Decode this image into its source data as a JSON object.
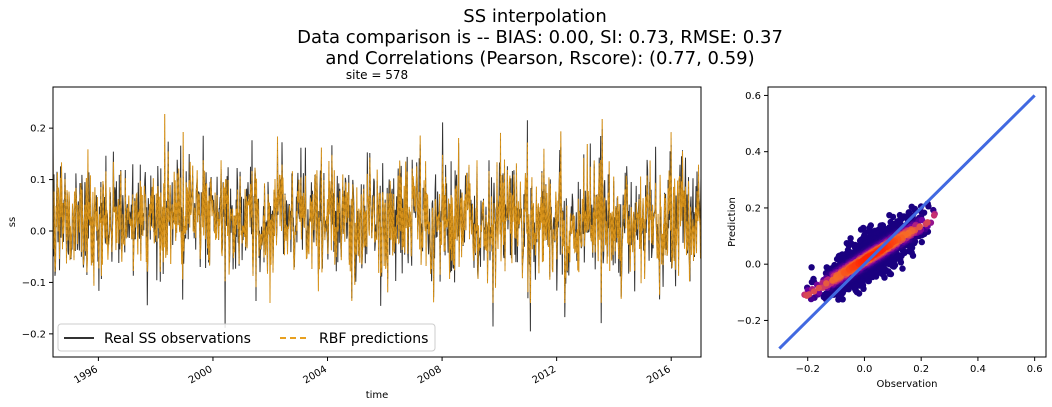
{
  "figure": {
    "title_lines": [
      "SS interpolation",
      "Data comparison is   --   BIAS: 0.00, SI: 0.73, RMSE: 0.37",
      "and Correlations (Pearson, Rscore): (0.77, 0.59)"
    ],
    "colors": {
      "observation_series": "#333333",
      "prediction_series": "#e8a020",
      "prediction_overlap": "#c08010",
      "fit_line": "#4169e1",
      "density_low": "#1a0080",
      "density_mid": "#c0287a",
      "density_high": "#ff2000"
    }
  },
  "chart_data": [
    {
      "type": "line",
      "title": "site = 578",
      "xlabel": "time",
      "ylabel": "ss",
      "xlim": [
        "1994-06-01",
        "2017-01-15"
      ],
      "ylim": [
        -0.245,
        0.28
      ],
      "x_ticks": [
        "1996",
        "2000",
        "2004",
        "2008",
        "2012",
        "2016"
      ],
      "y_ticks": [
        "−0.2",
        "−0.1",
        "0.0",
        "0.1",
        "0.2"
      ],
      "legend_position": "lower-left",
      "series": [
        {
          "name": "Real SS observations",
          "style": "solid",
          "color": "#333333",
          "approx_range": [
            -0.225,
            0.245
          ]
        },
        {
          "name": "RBF predictions",
          "style": "dashed",
          "color": "#e8a020",
          "approx_range": [
            -0.14,
            0.25
          ]
        }
      ]
    },
    {
      "type": "scatter",
      "xlabel": "Observation",
      "ylabel": "Prediction",
      "xlim": [
        -0.34,
        0.64
      ],
      "ylim": [
        -0.33,
        0.63
      ],
      "x_ticks": [
        "−0.2",
        "0.0",
        "0.2",
        "0.4",
        "0.6"
      ],
      "y_ticks": [
        "−0.2",
        "0.0",
        "0.2",
        "0.4",
        "0.6"
      ],
      "fit_line": {
        "x": [
          -0.3,
          0.6
        ],
        "y": [
          -0.3,
          0.6
        ]
      },
      "density_cloud": {
        "x_range": [
          -0.22,
          0.26
        ],
        "y_range": [
          -0.15,
          0.25
        ],
        "correlation": 0.77
      }
    }
  ]
}
